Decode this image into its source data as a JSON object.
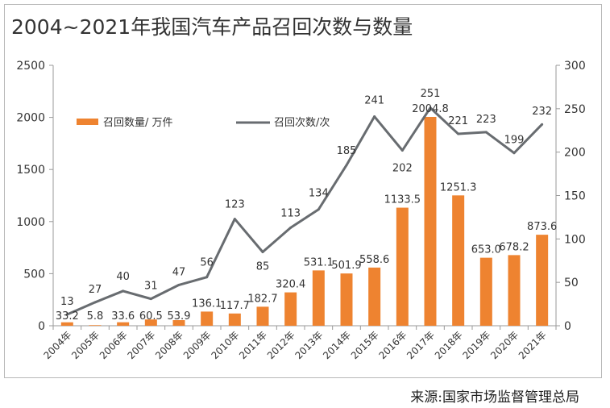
{
  "title": "2004~2021年我国汽车产品召回次数与数量",
  "source": "来源:国家市场监督管理总局",
  "colors": {
    "bar": "#ee8330",
    "line": "#686c70",
    "axis": "#9a9a9a",
    "text": "#333333"
  },
  "chart_data": {
    "type": "bar",
    "title": "2004~2021年我国汽车产品召回次数与数量",
    "categories": [
      "2004年",
      "2005年",
      "2006年",
      "2007年",
      "2008年",
      "2009年",
      "2010年",
      "2011年",
      "2012年",
      "2013年",
      "2014年",
      "2015年",
      "2016年",
      "2017年",
      "2018年",
      "2019年",
      "2020年",
      "2021年"
    ],
    "series": [
      {
        "name": "召回数量/ 万件",
        "type": "bar",
        "axis": "left",
        "values": [
          33.2,
          5.8,
          33.6,
          60.5,
          53.9,
          136.1,
          117.7,
          182.7,
          320.4,
          531.1,
          501.9,
          558.6,
          1133.5,
          2004.8,
          1251.3,
          653.0,
          678.2,
          873.6
        ],
        "labels": [
          "33.2",
          "5.8",
          "33.6",
          "60.5",
          "53.9",
          "136.1",
          "117.7",
          "182.7",
          "320.4",
          "531.1",
          "501.9",
          "558.6",
          "1133.5",
          "2004.8",
          "1251.3",
          "653.0",
          "678.2",
          "873.6"
        ]
      },
      {
        "name": "召回次数/次",
        "type": "line",
        "axis": "right",
        "values": [
          13,
          27,
          40,
          31,
          47,
          56,
          123,
          85,
          113,
          134,
          185,
          241,
          202,
          251,
          221,
          223,
          199,
          232
        ],
        "labels": [
          "13",
          "27",
          "40",
          "31",
          "47",
          "56",
          "123",
          "85",
          "113",
          "134",
          "185",
          "241",
          "202",
          "251",
          "221",
          "223",
          "199",
          "232"
        ]
      }
    ],
    "y_left": {
      "min": 0,
      "max": 2500,
      "ticks": [
        "0",
        "500",
        "1000",
        "1500",
        "2000",
        "2500"
      ]
    },
    "y_right": {
      "min": 0,
      "max": 300,
      "ticks": [
        "0",
        "50",
        "100",
        "150",
        "200",
        "250",
        "300"
      ]
    },
    "grid": false,
    "legend_position": "top-left"
  }
}
